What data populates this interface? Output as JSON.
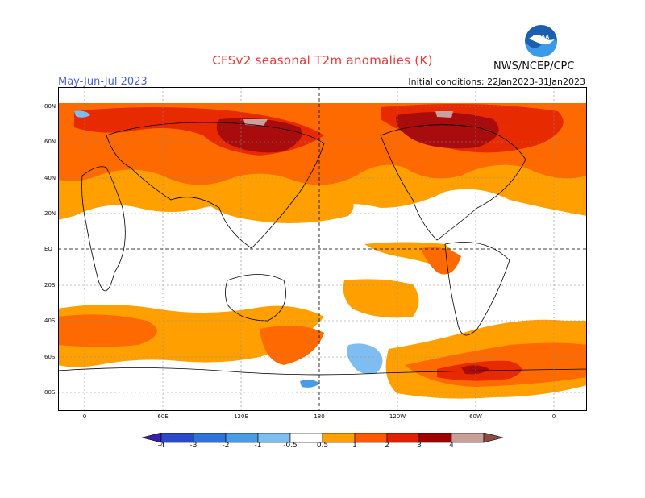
{
  "title": "CFSv2  seasonal  T2m  anomalies  (K)",
  "season": "May-Jun-Jul 2023",
  "initial_conditions": "Initial conditions: 22Jan2023-31Jan2023",
  "agency": "NWS/NCEP/CPC",
  "logo_text": "NOAA",
  "lat_labels": [
    "80N",
    "60N",
    "40N",
    "20N",
    "EQ",
    "20S",
    "40S",
    "60S",
    "80S"
  ],
  "lon_labels": [
    "0",
    "60E",
    "120E",
    "180",
    "120W",
    "60W",
    "0"
  ],
  "colorbar": {
    "labels": [
      "-4",
      "-3",
      "-2",
      "-1",
      "-0.5",
      "0.5",
      "1",
      "2",
      "3",
      "4"
    ],
    "colors": [
      "#3a1fa8",
      "#2b49c8",
      "#2f72dc",
      "#4a9be6",
      "#7fbdf0",
      "#ffffff",
      "#ffa000",
      "#ff5a00",
      "#e02000",
      "#a00000",
      "#c8a098",
      "#8c4c40"
    ]
  },
  "colors": {
    "title": "#e83a3a",
    "season": "#4b5fd0",
    "anom_0_5": "#ffa500",
    "anom_1": "#ff6a00",
    "anom_2": "#e82a00",
    "anom_3": "#a80c0c",
    "anom_4": "#c8a0a0",
    "neg_0_5": "#7fbdf0",
    "neg_1": "#4a9be6"
  }
}
